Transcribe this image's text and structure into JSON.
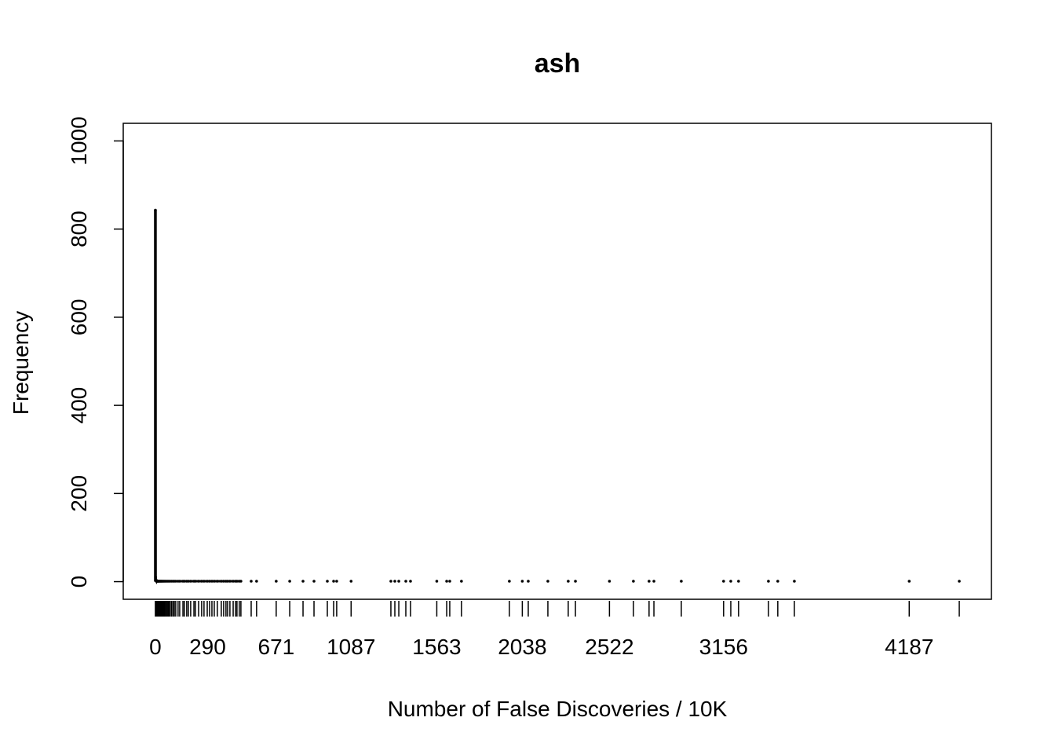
{
  "chart_data": {
    "type": "line",
    "title": "ash",
    "xlabel": "Number of False Discoveries / 10K",
    "ylabel": "Frequency",
    "xlim": [
      0,
      4465
    ],
    "ylim": [
      0,
      1000
    ],
    "grid": false,
    "x_tick_labels": [
      0,
      290,
      671,
      1087,
      1563,
      2038,
      2522,
      3156,
      4187
    ],
    "y_ticks": [
      0,
      200,
      400,
      600,
      800,
      1000
    ],
    "color": "#000000",
    "points": [
      [
        0,
        843
      ],
      [
        1,
        10
      ],
      [
        2,
        3
      ],
      [
        3,
        2
      ],
      [
        4,
        2
      ],
      [
        5,
        2
      ],
      [
        6,
        1
      ],
      [
        7,
        2
      ],
      [
        8,
        1
      ],
      [
        9,
        1
      ],
      [
        10,
        1
      ],
      [
        12,
        1
      ],
      [
        14,
        1
      ],
      [
        16,
        1
      ],
      [
        18,
        1
      ],
      [
        20,
        1
      ],
      [
        23,
        1
      ],
      [
        26,
        1
      ],
      [
        29,
        1
      ],
      [
        32,
        1
      ],
      [
        35,
        1
      ],
      [
        39,
        1
      ],
      [
        43,
        1
      ],
      [
        47,
        1
      ],
      [
        52,
        1
      ],
      [
        57,
        1
      ],
      [
        63,
        1
      ],
      [
        69,
        1
      ],
      [
        75,
        1
      ],
      [
        82,
        1
      ],
      [
        90,
        1
      ],
      [
        98,
        1
      ],
      [
        105,
        1
      ],
      [
        113,
        1
      ],
      [
        126,
        1
      ],
      [
        135,
        1
      ],
      [
        153,
        1
      ],
      [
        161,
        1
      ],
      [
        174,
        1
      ],
      [
        183,
        1
      ],
      [
        196,
        1
      ],
      [
        214,
        1
      ],
      [
        222,
        1
      ],
      [
        240,
        1
      ],
      [
        257,
        1
      ],
      [
        270,
        1
      ],
      [
        288,
        1
      ],
      [
        301,
        1
      ],
      [
        314,
        1
      ],
      [
        327,
        1
      ],
      [
        344,
        1
      ],
      [
        366,
        1
      ],
      [
        379,
        1
      ],
      [
        392,
        1
      ],
      [
        401,
        1
      ],
      [
        414,
        1
      ],
      [
        432,
        1
      ],
      [
        445,
        1
      ],
      [
        453,
        1
      ],
      [
        466,
        1
      ],
      [
        475,
        1
      ],
      [
        532,
        1
      ],
      [
        562,
        1
      ],
      [
        671,
        1
      ],
      [
        746,
        1
      ],
      [
        820,
        1
      ],
      [
        881,
        1
      ],
      [
        955,
        1
      ],
      [
        990,
        1
      ],
      [
        1007,
        1
      ],
      [
        1087,
        1
      ],
      [
        1308,
        1
      ],
      [
        1330,
        1
      ],
      [
        1352,
        1
      ],
      [
        1391,
        1
      ],
      [
        1417,
        1
      ],
      [
        1563,
        1
      ],
      [
        1618,
        1
      ],
      [
        1635,
        1
      ],
      [
        1700,
        1
      ],
      [
        1966,
        1
      ],
      [
        2038,
        1
      ],
      [
        2071,
        1
      ],
      [
        2180,
        1
      ],
      [
        2293,
        1
      ],
      [
        2333,
        1
      ],
      [
        2522,
        1
      ],
      [
        2655,
        1
      ],
      [
        2742,
        1
      ],
      [
        2769,
        1
      ],
      [
        2921,
        1
      ],
      [
        3156,
        1
      ],
      [
        3196,
        1
      ],
      [
        3239,
        1
      ],
      [
        3405,
        1
      ],
      [
        3457,
        1
      ],
      [
        3549,
        1
      ],
      [
        4187,
        1
      ],
      [
        4465,
        1
      ]
    ]
  }
}
